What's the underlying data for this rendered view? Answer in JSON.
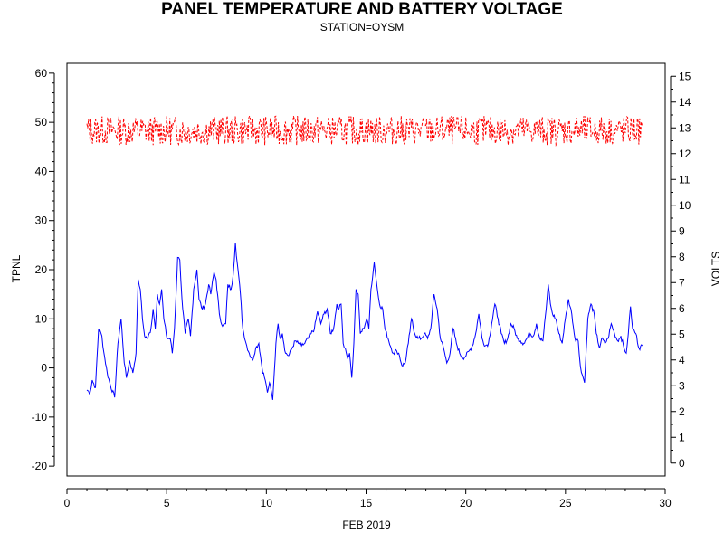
{
  "chart_data": {
    "type": "line",
    "title": "PANEL TEMPERATURE AND BATTERY VOLTAGE",
    "subtitle": "STATION=OYSM",
    "xlabel": "FEB 2019",
    "ylabel_left": "TPNL",
    "ylabel_right": "VOLTS",
    "xlim": [
      0,
      30
    ],
    "ylim_left": [
      -22,
      62
    ],
    "ylim_right": [
      -0.5,
      15.5
    ],
    "x_ticks": [
      0,
      5,
      10,
      15,
      20,
      25,
      30
    ],
    "y_left_ticks": [
      -20,
      -10,
      0,
      10,
      20,
      30,
      40,
      50,
      60
    ],
    "y_right_ticks": [
      0,
      1,
      2,
      3,
      4,
      5,
      6,
      7,
      8,
      9,
      10,
      11,
      12,
      13,
      14,
      15
    ],
    "series": [
      {
        "name": "TPNL",
        "axis": "left",
        "color": "#0000ff",
        "style": "solid",
        "points": [
          [
            1.0,
            -4.5
          ],
          [
            1.15,
            -5.0
          ],
          [
            1.25,
            -2.5
          ],
          [
            1.4,
            -4.0
          ],
          [
            1.55,
            8.0
          ],
          [
            1.7,
            6.5
          ],
          [
            1.8,
            3.0
          ],
          [
            1.95,
            -1.0
          ],
          [
            2.1,
            -3.5
          ],
          [
            2.3,
            -6.0
          ],
          [
            2.45,
            5.0
          ],
          [
            2.6,
            10.0
          ],
          [
            2.75,
            1.0
          ],
          [
            2.85,
            -2.0
          ],
          [
            3.0,
            1.5
          ],
          [
            3.15,
            -1.0
          ],
          [
            3.3,
            3.0
          ],
          [
            3.4,
            18.0
          ],
          [
            3.5,
            16.0
          ],
          [
            3.6,
            10.0
          ],
          [
            3.7,
            6.5
          ],
          [
            3.85,
            6.0
          ],
          [
            4.0,
            8.0
          ],
          [
            4.1,
            12.0
          ],
          [
            4.2,
            8.0
          ],
          [
            4.3,
            15.0
          ],
          [
            4.4,
            13.0
          ],
          [
            4.5,
            16.0
          ],
          [
            4.6,
            10.0
          ],
          [
            4.75,
            6.0
          ],
          [
            4.9,
            6.0
          ],
          [
            5.0,
            3.0
          ],
          [
            5.1,
            8.0
          ],
          [
            5.25,
            22.5
          ],
          [
            5.35,
            22.0
          ],
          [
            5.45,
            14.0
          ],
          [
            5.6,
            7.0
          ],
          [
            5.75,
            10.0
          ],
          [
            5.85,
            6.5
          ],
          [
            6.0,
            16.0
          ],
          [
            6.15,
            20.0
          ],
          [
            6.25,
            14.0
          ],
          [
            6.4,
            12.0
          ],
          [
            6.55,
            13.0
          ],
          [
            6.7,
            17.0
          ],
          [
            6.8,
            15.0
          ],
          [
            6.95,
            19.5
          ],
          [
            7.05,
            18.0
          ],
          [
            7.2,
            11.0
          ],
          [
            7.35,
            8.5
          ],
          [
            7.5,
            9.0
          ],
          [
            7.6,
            17.0
          ],
          [
            7.75,
            16.0
          ],
          [
            7.85,
            19.0
          ],
          [
            7.95,
            25.5
          ],
          [
            8.05,
            21.0
          ],
          [
            8.15,
            17.0
          ],
          [
            8.3,
            8.0
          ],
          [
            8.45,
            5.0
          ],
          [
            8.6,
            3.0
          ],
          [
            8.75,
            1.5
          ],
          [
            8.9,
            4.0
          ],
          [
            9.05,
            5.0
          ],
          [
            9.2,
            0.0
          ],
          [
            9.35,
            -2.5
          ],
          [
            9.45,
            -5.0
          ],
          [
            9.55,
            -3.0
          ],
          [
            9.7,
            -6.5
          ],
          [
            9.85,
            5.0
          ],
          [
            9.95,
            9.0
          ],
          [
            10.05,
            6.0
          ],
          [
            10.15,
            7.0
          ],
          [
            10.3,
            3.0
          ],
          [
            10.45,
            2.5
          ],
          [
            10.6,
            4.0
          ],
          [
            10.75,
            5.5
          ],
          [
            10.9,
            5.0
          ],
          [
            11.05,
            4.5
          ],
          [
            11.2,
            5.0
          ],
          [
            11.35,
            6.0
          ],
          [
            11.5,
            7.0
          ],
          [
            11.65,
            8.0
          ],
          [
            11.8,
            11.5
          ],
          [
            11.95,
            9.0
          ],
          [
            12.1,
            11.0
          ],
          [
            12.25,
            12.0
          ],
          [
            12.4,
            7.0
          ],
          [
            12.55,
            8.0
          ],
          [
            12.7,
            13.0
          ],
          [
            12.8,
            12.0
          ],
          [
            12.9,
            13.0
          ],
          [
            13.0,
            5.0
          ],
          [
            13.1,
            4.0
          ],
          [
            13.2,
            2.0
          ],
          [
            13.3,
            3.0
          ],
          [
            13.4,
            -2.0
          ],
          [
            13.5,
            5.0
          ],
          [
            13.6,
            16.0
          ],
          [
            13.7,
            15.0
          ],
          [
            13.8,
            7.0
          ],
          [
            13.95,
            8.0
          ],
          [
            14.1,
            10.0
          ],
          [
            14.2,
            8.0
          ],
          [
            14.3,
            16.0
          ],
          [
            14.45,
            21.5
          ],
          [
            14.6,
            16.0
          ],
          [
            14.7,
            13.0
          ],
          [
            14.85,
            12.0
          ],
          [
            14.95,
            8.0
          ],
          [
            15.1,
            6.0
          ],
          [
            15.25,
            4.0
          ],
          [
            15.35,
            3.0
          ],
          [
            15.5,
            3.5
          ],
          [
            15.6,
            3.0
          ],
          [
            15.75,
            0.5
          ],
          [
            15.9,
            1.0
          ],
          [
            16.05,
            5.0
          ],
          [
            16.2,
            10.0
          ],
          [
            16.35,
            7.0
          ],
          [
            16.5,
            6.0
          ],
          [
            16.65,
            6.0
          ],
          [
            16.8,
            7.0
          ],
          [
            16.95,
            6.0
          ],
          [
            17.1,
            8.0
          ],
          [
            17.25,
            15.0
          ],
          [
            17.4,
            12.0
          ],
          [
            17.55,
            6.0
          ],
          [
            17.7,
            4.0
          ],
          [
            17.85,
            1.0
          ],
          [
            18.0,
            3.0
          ],
          [
            18.15,
            8.0
          ],
          [
            18.3,
            5.0
          ],
          [
            18.45,
            3.0
          ],
          [
            18.6,
            2.0
          ],
          [
            18.75,
            2.5
          ],
          [
            18.9,
            3.5
          ],
          [
            19.05,
            4.5
          ],
          [
            19.2,
            7.0
          ],
          [
            19.35,
            11.0
          ],
          [
            19.5,
            6.0
          ],
          [
            19.65,
            4.5
          ],
          [
            19.8,
            5.0
          ],
          [
            19.95,
            9.0
          ],
          [
            20.1,
            13.0
          ],
          [
            20.25,
            10.0
          ],
          [
            20.4,
            7.0
          ],
          [
            20.55,
            5.0
          ],
          [
            20.7,
            6.0
          ],
          [
            20.85,
            9.0
          ],
          [
            21.0,
            8.0
          ],
          [
            21.15,
            6.0
          ],
          [
            21.3,
            5.5
          ],
          [
            21.45,
            5.0
          ],
          [
            21.6,
            6.0
          ],
          [
            21.75,
            7.0
          ],
          [
            21.9,
            6.5
          ],
          [
            22.05,
            9.0
          ],
          [
            22.2,
            6.0
          ],
          [
            22.35,
            5.5
          ],
          [
            22.5,
            12.0
          ],
          [
            22.6,
            17.0
          ],
          [
            22.7,
            13.0
          ],
          [
            22.8,
            11.0
          ],
          [
            22.95,
            10.0
          ],
          [
            23.1,
            7.0
          ],
          [
            23.25,
            5.0
          ],
          [
            23.4,
            10.0
          ],
          [
            23.55,
            14.0
          ],
          [
            23.7,
            11.0
          ],
          [
            23.85,
            6.0
          ],
          [
            24.0,
            5.5
          ],
          [
            24.1,
            0.5
          ],
          [
            24.2,
            -1.5
          ],
          [
            24.3,
            -3.0
          ],
          [
            24.45,
            10.0
          ],
          [
            24.6,
            13.0
          ],
          [
            24.75,
            11.0
          ],
          [
            24.85,
            7.0
          ],
          [
            25.0,
            4.0
          ],
          [
            25.1,
            6.0
          ],
          [
            25.25,
            5.0
          ],
          [
            25.4,
            6.0
          ],
          [
            25.55,
            9.0
          ],
          [
            25.7,
            7.0
          ],
          [
            25.85,
            5.5
          ],
          [
            26.0,
            6.5
          ],
          [
            26.15,
            4.0
          ],
          [
            26.25,
            3.0
          ],
          [
            26.35,
            7.0
          ],
          [
            26.45,
            12.5
          ],
          [
            26.55,
            8.0
          ],
          [
            26.7,
            7.0
          ],
          [
            26.85,
            4.0
          ],
          [
            27.0,
            4.5
          ]
        ]
      },
      {
        "name": "VOLTS",
        "axis": "right",
        "color": "#ff0000",
        "style": "dashed",
        "x_range": [
          1.0,
          28.85
        ],
        "mean": 12.9,
        "min": 12.3,
        "max": 13.5
      }
    ],
    "grid": false,
    "legend": "none"
  }
}
